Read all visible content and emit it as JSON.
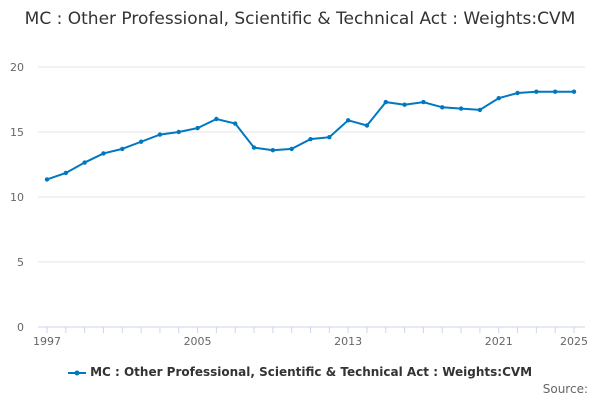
{
  "chart_data": {
    "type": "line",
    "title": "MC : Other Professional, Scientific & Technical Act : Weights:CVM",
    "xlabel": "",
    "ylabel": "",
    "x": [
      1997,
      1998,
      1999,
      2000,
      2001,
      2002,
      2003,
      2004,
      2005,
      2006,
      2007,
      2008,
      2009,
      2010,
      2011,
      2012,
      2013,
      2014,
      2015,
      2016,
      2017,
      2018,
      2019,
      2020,
      2021,
      2022,
      2023,
      2024,
      2025
    ],
    "series": [
      {
        "name": "MC : Other Professional, Scientific & Technical Act : Weights:CVM",
        "color": "#0078c0",
        "values": [
          11.35,
          11.85,
          12.65,
          13.35,
          13.7,
          14.25,
          14.8,
          15.0,
          15.3,
          16.0,
          15.65,
          13.8,
          13.6,
          13.7,
          14.45,
          14.6,
          15.9,
          15.5,
          17.3,
          17.1,
          17.3,
          16.9,
          16.8,
          16.7,
          17.6,
          18.0,
          18.1,
          18.1,
          18.1
        ]
      }
    ],
    "ylim": [
      0,
      20
    ],
    "yticks": [
      "0",
      "5",
      "10",
      "15",
      "20"
    ],
    "xtick_labels": [
      "1997",
      "2005",
      "2013",
      "2021",
      "2025"
    ],
    "grid": true,
    "legend": "bottom"
  },
  "source_label": "Source:"
}
